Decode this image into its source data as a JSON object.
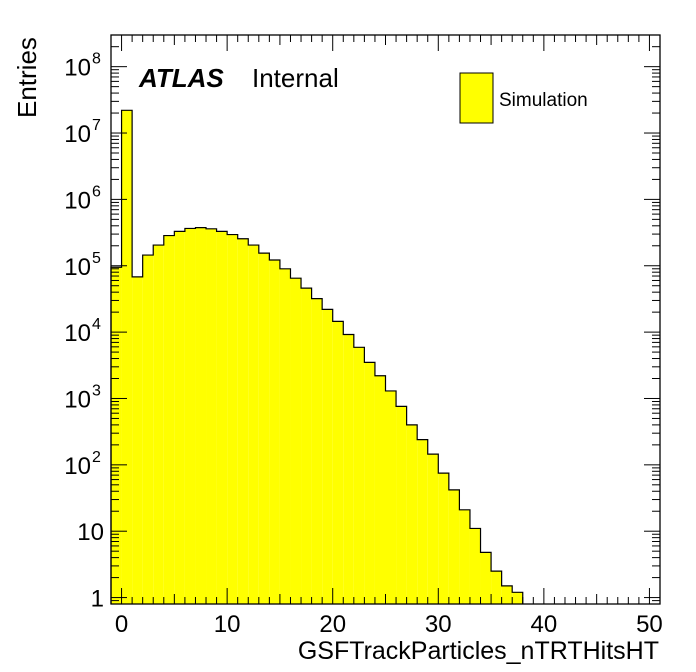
{
  "chart_data": {
    "type": "histogram",
    "xlabel": "GSFTrackParticles_nTRTHitsHT",
    "ylabel": "Entries",
    "xlim": [
      -1,
      51
    ],
    "ylim": [
      0.8,
      300000000.0
    ],
    "log_y": true,
    "grid": false,
    "annotation": {
      "experiment": "ATLAS",
      "status": "Internal"
    },
    "legend": {
      "position": "top-right",
      "entries": [
        {
          "label": "Simulation",
          "color": "#ffff00"
        }
      ]
    },
    "x_ticks": [
      0,
      10,
      20,
      30,
      40,
      50
    ],
    "y_ticks": [
      {
        "value": 1,
        "base": "1",
        "exp": ""
      },
      {
        "value": 10,
        "base": "10",
        "exp": ""
      },
      {
        "value": 100,
        "base": "10",
        "exp": "2"
      },
      {
        "value": 1000,
        "base": "10",
        "exp": "3"
      },
      {
        "value": 10000,
        "base": "10",
        "exp": "4"
      },
      {
        "value": 100000,
        "base": "10",
        "exp": "5"
      },
      {
        "value": 1000000,
        "base": "10",
        "exp": "6"
      },
      {
        "value": 10000000,
        "base": "10",
        "exp": "7"
      },
      {
        "value": 100000000,
        "base": "10",
        "exp": "8"
      }
    ],
    "bin_width": 1,
    "bin_lows": [
      -1,
      0,
      1,
      2,
      3,
      4,
      5,
      6,
      7,
      8,
      9,
      10,
      11,
      12,
      13,
      14,
      15,
      16,
      17,
      18,
      19,
      20,
      21,
      22,
      23,
      24,
      25,
      26,
      27,
      28,
      29,
      30,
      31,
      32,
      33,
      34,
      35,
      36,
      37
    ],
    "values": [
      95000,
      22000000,
      68000,
      145000,
      205000,
      285000,
      330000,
      365000,
      375000,
      360000,
      330000,
      295000,
      255000,
      205000,
      155000,
      122000,
      90000,
      65000,
      46000,
      32000,
      22000,
      14500,
      9200,
      5900,
      3500,
      2200,
      1300,
      760,
      400,
      240,
      145,
      75,
      42,
      21,
      11,
      4.8,
      2.5,
      1.5,
      1.2
    ],
    "series_color": "#ffff00"
  }
}
